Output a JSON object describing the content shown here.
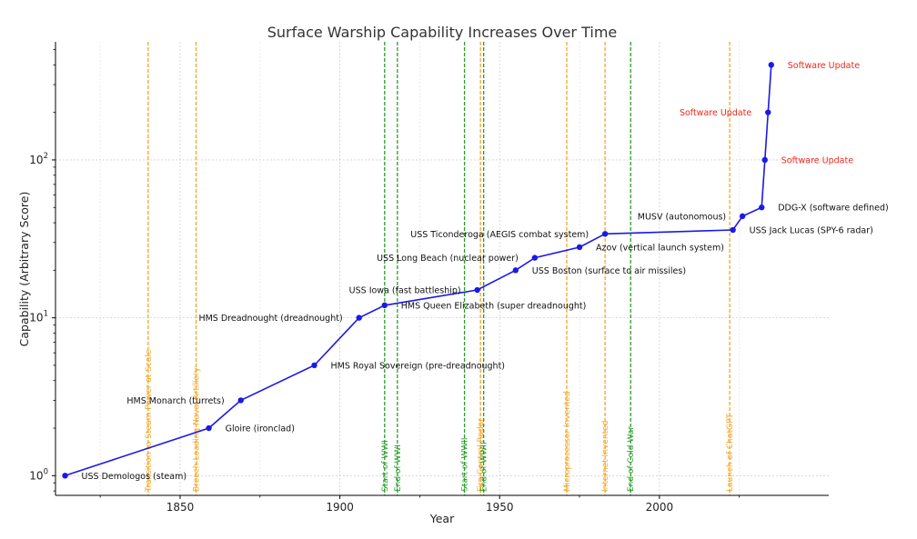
{
  "chart_data": {
    "type": "line",
    "title": "Surface Warship Capability Increases Over Time",
    "xlabel": "Year",
    "ylabel": "Capability (Arbitrary Score)",
    "xlim": [
      1811,
      2053
    ],
    "yscale": "log",
    "ylim": [
      0.75,
      560
    ],
    "x_ticks": [
      {
        "value": 1850,
        "label": "1850"
      },
      {
        "value": 1900,
        "label": "1900"
      },
      {
        "value": 1950,
        "label": "1950"
      },
      {
        "value": 2000,
        "label": "2000"
      }
    ],
    "y_ticks": [
      {
        "value": 1,
        "base": "10",
        "exp": "0"
      },
      {
        "value": 10,
        "base": "10",
        "exp": "1"
      },
      {
        "value": 100,
        "base": "10",
        "exp": "2"
      }
    ],
    "grid": true,
    "line_color": "#1a1ae6",
    "label_color": "#e8291c",
    "series": [
      {
        "name": "",
        "points": [
          {
            "x": 1814,
            "y": 1,
            "label": "USS Demologos (steam)",
            "anchor": "right"
          },
          {
            "x": 1859,
            "y": 2,
            "label": "Gloire (ironclad)",
            "anchor": "right"
          },
          {
            "x": 1869,
            "y": 3,
            "label": "HMS Monarch (turrets)",
            "anchor": "left"
          },
          {
            "x": 1892,
            "y": 5,
            "label": "HMS Royal Sovereign (pre-dreadnought)",
            "anchor": "right"
          },
          {
            "x": 1906,
            "y": 10,
            "label": "HMS Dreadnought (dreadnought)",
            "anchor": "left"
          },
          {
            "x": 1914,
            "y": 12,
            "label": "HMS Queen Elizabeth (super dreadnought)",
            "anchor": "right"
          },
          {
            "x": 1943,
            "y": 15,
            "label": "USS Iowa (fast battleship)",
            "anchor": "left"
          },
          {
            "x": 1955,
            "y": 20,
            "label": "USS Boston (surface to air missiles)",
            "anchor": "right"
          },
          {
            "x": 1961,
            "y": 24,
            "label": "USS Long Beach (nuclear power)",
            "anchor": "left"
          },
          {
            "x": 1975,
            "y": 28,
            "label": "Azov (vertical launch system)",
            "anchor": "right"
          },
          {
            "x": 1983,
            "y": 34,
            "label": "USS Ticonderoga (AEGIS combat system)",
            "anchor": "left"
          },
          {
            "x": 2023,
            "y": 36,
            "label": "USS Jack Lucas (SPY-6 radar)",
            "anchor": "right"
          },
          {
            "x": 2026,
            "y": 44,
            "label": "MUSV (autonomous)",
            "anchor": "left"
          },
          {
            "x": 2032,
            "y": 50,
            "label": "DDG-X (software defined)",
            "anchor": "right"
          },
          {
            "x": 2033,
            "y": 100,
            "label": "Software Update",
            "anchor": "right",
            "color": "red"
          },
          {
            "x": 2034,
            "y": 200,
            "label": "Software Update",
            "anchor": "left",
            "color": "red"
          },
          {
            "x": 2035,
            "y": 400,
            "label": "Software Update",
            "anchor": "right",
            "color": "red"
          }
        ]
      }
    ],
    "events": [
      {
        "x": 1840,
        "label": "Transition to Steam Power at Scale",
        "color": "#f5a623"
      },
      {
        "x": 1855,
        "label": "Breech-Loading Naval Artillery",
        "color": "#f5a623"
      },
      {
        "x": 1914,
        "label": "Start of WWI",
        "color": "#2a9d2a"
      },
      {
        "x": 1918,
        "label": "End of WWI",
        "color": "#2a9d2a"
      },
      {
        "x": 1939,
        "label": "Start of WWII",
        "color": "#2a9d2a"
      },
      {
        "x": 1944,
        "label": "Fire Control Radar",
        "color": "#f5a623"
      },
      {
        "x": 1945,
        "label": "End of WWII",
        "color": "#2a9d2a"
      },
      {
        "x": 1971,
        "label": "Microprocessor Invented",
        "color": "#f5a623"
      },
      {
        "x": 1983,
        "label": "Internet Invented",
        "color": "#f5a623"
      },
      {
        "x": 1991,
        "label": "End of Cold War",
        "color": "#2a9d2a"
      },
      {
        "x": 2022,
        "label": "Launch of ChatGPT",
        "color": "#f5a623"
      }
    ]
  }
}
